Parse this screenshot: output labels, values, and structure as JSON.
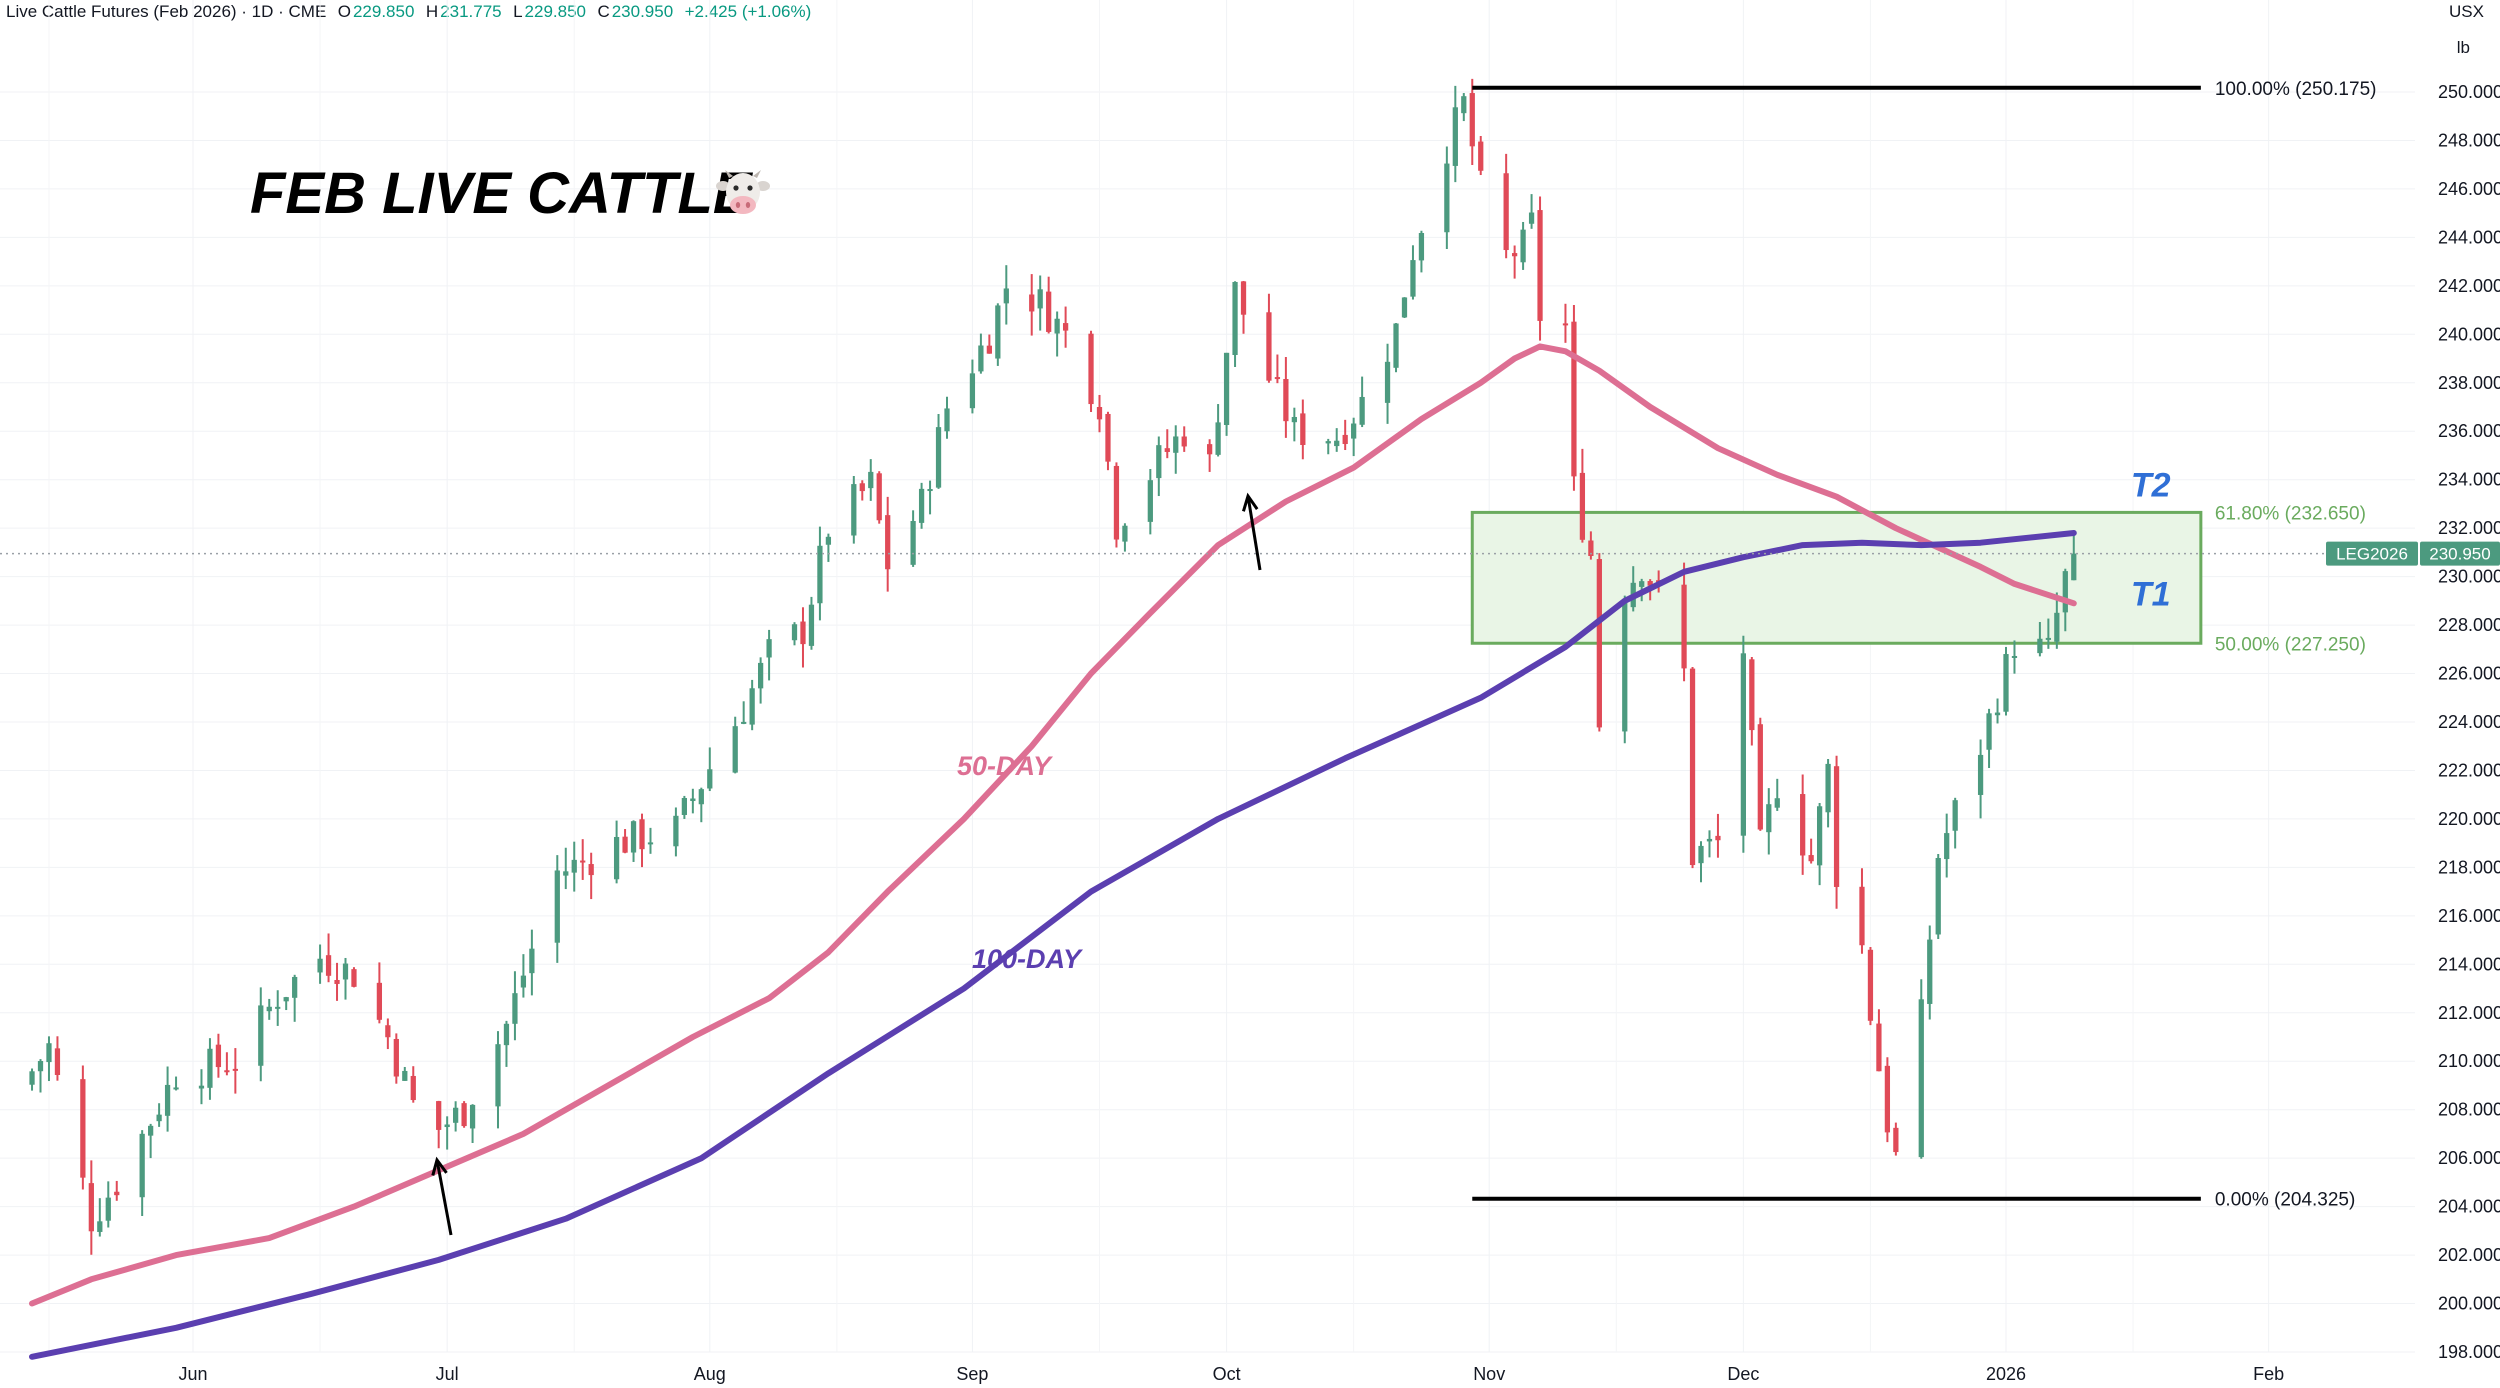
{
  "header": {
    "symbol": "Live Cattle Futures (Feb 2026) · 1D · CME",
    "open_label": "O",
    "open": "229.850",
    "high_label": "H",
    "high": "231.775",
    "low_label": "L",
    "low": "229.850",
    "close_label": "C",
    "close": "230.950",
    "change": "+2.425 (+1.06%)"
  },
  "title": "FEB LIVE CATTLE",
  "title_icon": "cow-face-icon",
  "axis_units": {
    "currency": "USX",
    "unit": "lb"
  },
  "price_tag": {
    "symbol": "LEG2026",
    "value": "230.950"
  },
  "colors": {
    "up": "#4c9a7f",
    "down": "#e04a57",
    "ma50": "#dd6f93",
    "ma100": "#5b3fb0",
    "zone_fill": "#e9f5e6",
    "zone_border": "#6aab5e",
    "fib_text": "#6aab5e",
    "t_labels": "#2f6fd6",
    "tag": "#4c9a7f"
  },
  "chart_data": {
    "type": "candlestick",
    "title": "FEB LIVE CATTLE",
    "y_axis": {
      "ylim": [
        198,
        251.5
      ],
      "ticks": [
        "198.000",
        "200.000",
        "202.000",
        "204.000",
        "206.000",
        "208.000",
        "210.000",
        "212.000",
        "214.000",
        "216.000",
        "218.000",
        "220.000",
        "222.000",
        "224.000",
        "226.000",
        "228.000",
        "230.000",
        "232.000",
        "234.000",
        "236.000",
        "238.000",
        "240.000",
        "242.000",
        "244.000",
        "246.000",
        "248.000",
        "250.000"
      ],
      "tick_values": [
        198,
        200,
        202,
        204,
        206,
        208,
        210,
        212,
        214,
        216,
        218,
        220,
        222,
        224,
        226,
        228,
        230,
        232,
        234,
        236,
        238,
        240,
        242,
        244,
        246,
        248,
        250
      ],
      "position": "right"
    },
    "x_axis": {
      "labels": [
        "Jun",
        "Jul",
        "Aug",
        "Sep",
        "Oct",
        "Nov",
        "Dec",
        "2026",
        "Feb"
      ]
    },
    "grid": true,
    "waypoints": [
      [
        "2025-05-13",
        209.6
      ],
      [
        "2025-05-15",
        210.6
      ],
      [
        "2025-05-20",
        203.5
      ],
      [
        "2025-05-23",
        205.0
      ],
      [
        "2025-05-30",
        209.5
      ],
      [
        "2025-06-06",
        210.0
      ],
      [
        "2025-06-11",
        212.7
      ],
      [
        "2025-06-16",
        214.3
      ],
      [
        "2025-06-20",
        213.6
      ],
      [
        "2025-06-24",
        211.0
      ],
      [
        "2025-06-27",
        208.2
      ],
      [
        "2025-06-30",
        207.2
      ],
      [
        "2025-07-03",
        208.0
      ],
      [
        "2025-07-08",
        211.5
      ],
      [
        "2025-07-14",
        217.8
      ],
      [
        "2025-07-17",
        218.2
      ],
      [
        "2025-07-21",
        219.0
      ],
      [
        "2025-07-28",
        219.6
      ],
      [
        "2025-07-31",
        221.5
      ],
      [
        "2025-08-05",
        224.6
      ],
      [
        "2025-08-08",
        226.8
      ],
      [
        "2025-08-12",
        227.8
      ],
      [
        "2025-08-15",
        232.0
      ],
      [
        "2025-08-20",
        233.8
      ],
      [
        "2025-08-22",
        230.5
      ],
      [
        "2025-08-26",
        233.0
      ],
      [
        "2025-08-29",
        237.0
      ],
      [
        "2025-09-03",
        240.0
      ],
      [
        "2025-09-05",
        242.0
      ],
      [
        "2025-09-09",
        241.3
      ],
      [
        "2025-09-12",
        240.0
      ],
      [
        "2025-09-16",
        237.2
      ],
      [
        "2025-09-18",
        232.2
      ],
      [
        "2025-09-23",
        234.8
      ],
      [
        "2025-09-26",
        236.0
      ],
      [
        "2025-09-29",
        234.6
      ],
      [
        "2025-10-02",
        241.8
      ],
      [
        "2025-10-06",
        238.2
      ],
      [
        "2025-10-09",
        236.0
      ],
      [
        "2025-10-14",
        235.8
      ],
      [
        "2025-10-17",
        237.2
      ],
      [
        "2025-10-21",
        240.2
      ],
      [
        "2025-10-23",
        243.5
      ],
      [
        "2025-10-27",
        247.8
      ],
      [
        "2025-10-29",
        249.5
      ],
      [
        "2025-10-31",
        246.0
      ],
      [
        "2025-11-03",
        243.2
      ],
      [
        "2025-11-05",
        243.6
      ],
      [
        "2025-11-06",
        244.5
      ],
      [
        "2025-11-07",
        240.8
      ],
      [
        "2025-11-10",
        240.3
      ],
      [
        "2025-11-11",
        233.6
      ],
      [
        "2025-11-13",
        230.9
      ],
      [
        "2025-11-14",
        224.0
      ],
      [
        "2025-11-17",
        229.5
      ],
      [
        "2025-11-19",
        230.5
      ],
      [
        "2025-11-21",
        229.3
      ],
      [
        "2025-11-24",
        226.0
      ],
      [
        "2025-11-25",
        218.5
      ],
      [
        "2025-11-28",
        219.0
      ],
      [
        "2025-12-01",
        227.0
      ],
      [
        "2025-12-03",
        218.8
      ],
      [
        "2025-12-05",
        221.5
      ],
      [
        "2025-12-09",
        218.3
      ],
      [
        "2025-12-11",
        222.0
      ],
      [
        "2025-12-12",
        217.8
      ],
      [
        "2025-12-15",
        214.7
      ],
      [
        "2025-12-16",
        212.0
      ],
      [
        "2025-12-18",
        207.5
      ],
      [
        "2025-12-19",
        206.0
      ],
      [
        "2025-12-22",
        211.8
      ],
      [
        "2025-12-24",
        218.5
      ],
      [
        "2025-12-29",
        223.0
      ],
      [
        "2026-01-02",
        227.3
      ],
      [
        "2026-01-06",
        226.9
      ],
      [
        "2026-01-08",
        229.9
      ],
      [
        "2026-01-09",
        230.9
      ]
    ],
    "last_candle": {
      "date": "2026-01-09",
      "open": 229.85,
      "high": 231.775,
      "low": 229.85,
      "close": 230.95
    },
    "series": [
      {
        "name": "50-DAY",
        "type": "line",
        "points": [
          [
            "2025-05-13",
            200.0
          ],
          [
            "2025-05-20",
            201.0
          ],
          [
            "2025-05-30",
            202.0
          ],
          [
            "2025-06-10",
            202.7
          ],
          [
            "2025-06-20",
            204.0
          ],
          [
            "2025-06-30",
            205.5
          ],
          [
            "2025-07-10",
            207.0
          ],
          [
            "2025-07-20",
            209.0
          ],
          [
            "2025-07-30",
            211.0
          ],
          [
            "2025-08-08",
            212.6
          ],
          [
            "2025-08-15",
            214.5
          ],
          [
            "2025-08-22",
            217.0
          ],
          [
            "2025-08-31",
            220.0
          ],
          [
            "2025-09-08",
            223.0
          ],
          [
            "2025-09-15",
            226.0
          ],
          [
            "2025-09-22",
            228.5
          ],
          [
            "2025-09-30",
            231.3
          ],
          [
            "2025-10-08",
            233.1
          ],
          [
            "2025-10-16",
            234.5
          ],
          [
            "2025-10-24",
            236.5
          ],
          [
            "2025-10-31",
            238.0
          ],
          [
            "2025-11-04",
            239.0
          ],
          [
            "2025-11-07",
            239.5
          ],
          [
            "2025-11-10",
            239.3
          ],
          [
            "2025-11-14",
            238.5
          ],
          [
            "2025-11-20",
            237.0
          ],
          [
            "2025-11-28",
            235.3
          ],
          [
            "2025-12-05",
            234.2
          ],
          [
            "2025-12-12",
            233.3
          ],
          [
            "2025-12-19",
            232.0
          ],
          [
            "2025-12-24",
            231.2
          ],
          [
            "2025-12-29",
            230.4
          ],
          [
            "2026-01-02",
            229.7
          ],
          [
            "2026-01-09",
            228.9
          ]
        ]
      },
      {
        "name": "100-DAY",
        "type": "line",
        "points": [
          [
            "2025-05-13",
            197.8
          ],
          [
            "2025-05-30",
            199.0
          ],
          [
            "2025-06-15",
            200.4
          ],
          [
            "2025-06-30",
            201.8
          ],
          [
            "2025-07-15",
            203.5
          ],
          [
            "2025-07-31",
            206.0
          ],
          [
            "2025-08-15",
            209.5
          ],
          [
            "2025-08-31",
            213.0
          ],
          [
            "2025-09-15",
            217.0
          ],
          [
            "2025-09-30",
            220.0
          ],
          [
            "2025-10-15",
            222.5
          ],
          [
            "2025-10-31",
            225.0
          ],
          [
            "2025-11-10",
            227.1
          ],
          [
            "2025-11-17",
            229.0
          ],
          [
            "2025-11-24",
            230.2
          ],
          [
            "2025-12-01",
            230.8
          ],
          [
            "2025-12-08",
            231.3
          ],
          [
            "2025-12-15",
            231.4
          ],
          [
            "2025-12-22",
            231.3
          ],
          [
            "2025-12-29",
            231.4
          ],
          [
            "2026-01-09",
            231.8
          ]
        ]
      }
    ],
    "annotations": {
      "fib_100": {
        "label": "100.00% (250.175)",
        "value": 250.175
      },
      "fib_618": {
        "label": "61.80% (232.650)",
        "value": 232.65
      },
      "fib_50": {
        "label": "50.00% (227.250)",
        "value": 227.25
      },
      "fib_0": {
        "label": "0.00% (204.325)",
        "value": 204.325
      },
      "target_zone": {
        "from": "2025-10-30",
        "to": "2026-01-24",
        "low": 227.25,
        "high": 232.65
      },
      "t1": "T1",
      "t2": "T2",
      "ma50_label": "50-DAY",
      "ma100_label": "100-DAY",
      "arrows": [
        "2025-06-30",
        "2025-10-11"
      ]
    }
  }
}
